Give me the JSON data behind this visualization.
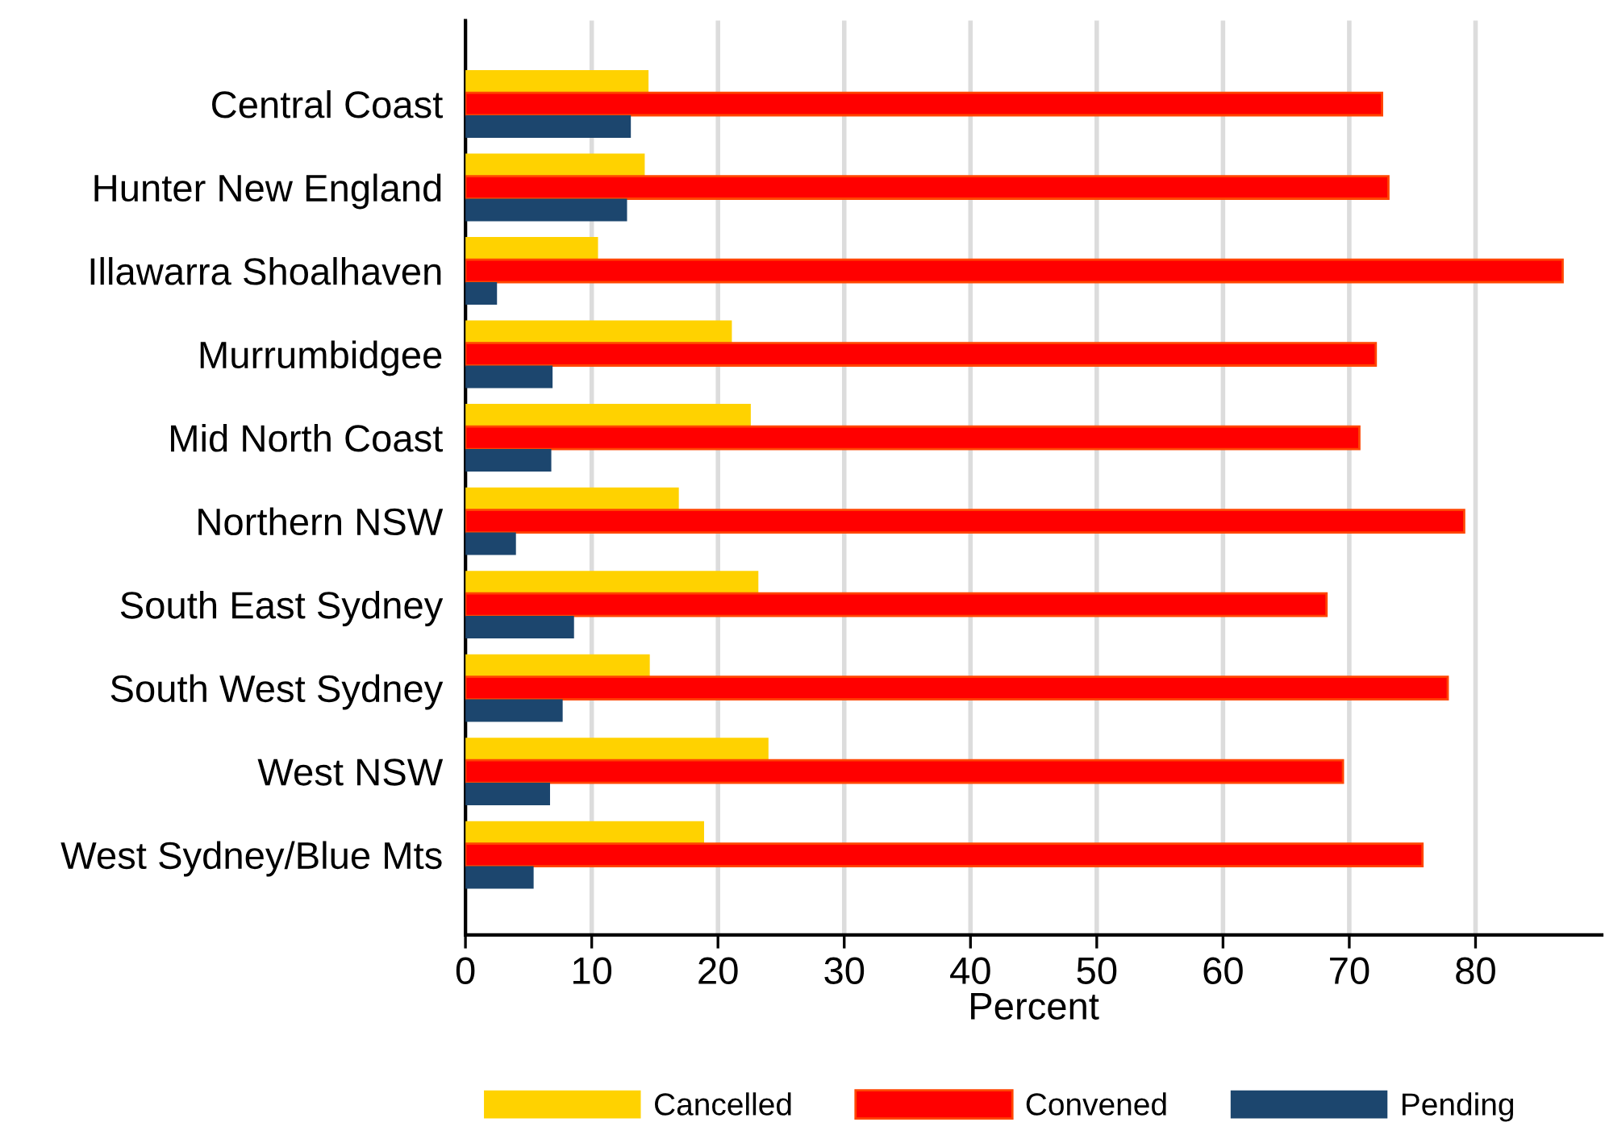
{
  "chart_data": {
    "type": "bar",
    "orientation": "horizontal",
    "xlabel": "Percent",
    "categories": [
      "Central Coast",
      "Hunter New England",
      "Illawarra Shoalhaven",
      "Murrumbidgee",
      "Mid North Coast",
      "Northern NSW",
      "South East Sydney",
      "South West Sydney",
      "West NSW",
      "West Sydney/Blue Mts"
    ],
    "series": [
      {
        "name": "Cancelled",
        "color": "#ffd200",
        "values": [
          14.5,
          14.2,
          10.5,
          21.1,
          22.6,
          16.9,
          23.2,
          14.6,
          24.0,
          18.9
        ]
      },
      {
        "name": "Convened",
        "color": "#ff0000",
        "values": [
          72.6,
          73.1,
          86.9,
          72.1,
          70.8,
          79.1,
          68.2,
          77.8,
          69.5,
          75.8
        ]
      },
      {
        "name": "Pending",
        "color": "#1c466e",
        "values": [
          13.1,
          12.8,
          2.5,
          6.9,
          6.8,
          4.0,
          8.6,
          7.7,
          6.7,
          5.4
        ]
      }
    ],
    "xlim": [
      0,
      90
    ],
    "xticks": [
      0,
      10,
      20,
      30,
      40,
      50,
      60,
      70,
      80
    ],
    "grid": "x",
    "legend": "bottom"
  }
}
